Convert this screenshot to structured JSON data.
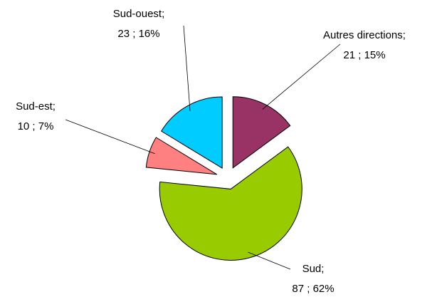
{
  "chart_data": {
    "type": "pie",
    "categories": [
      "Autres directions;",
      "Sud;",
      "Sud-est;",
      "Sud-ouest;"
    ],
    "values": [
      21,
      87,
      10,
      23
    ],
    "value_labels": [
      "21 ; 15%",
      "87 ; 62%",
      "10 ; 7%",
      "23 ; 16%"
    ],
    "colors": [
      "#993366",
      "#99cc00",
      "#ff8080",
      "#00ccff"
    ],
    "exploded": true
  }
}
